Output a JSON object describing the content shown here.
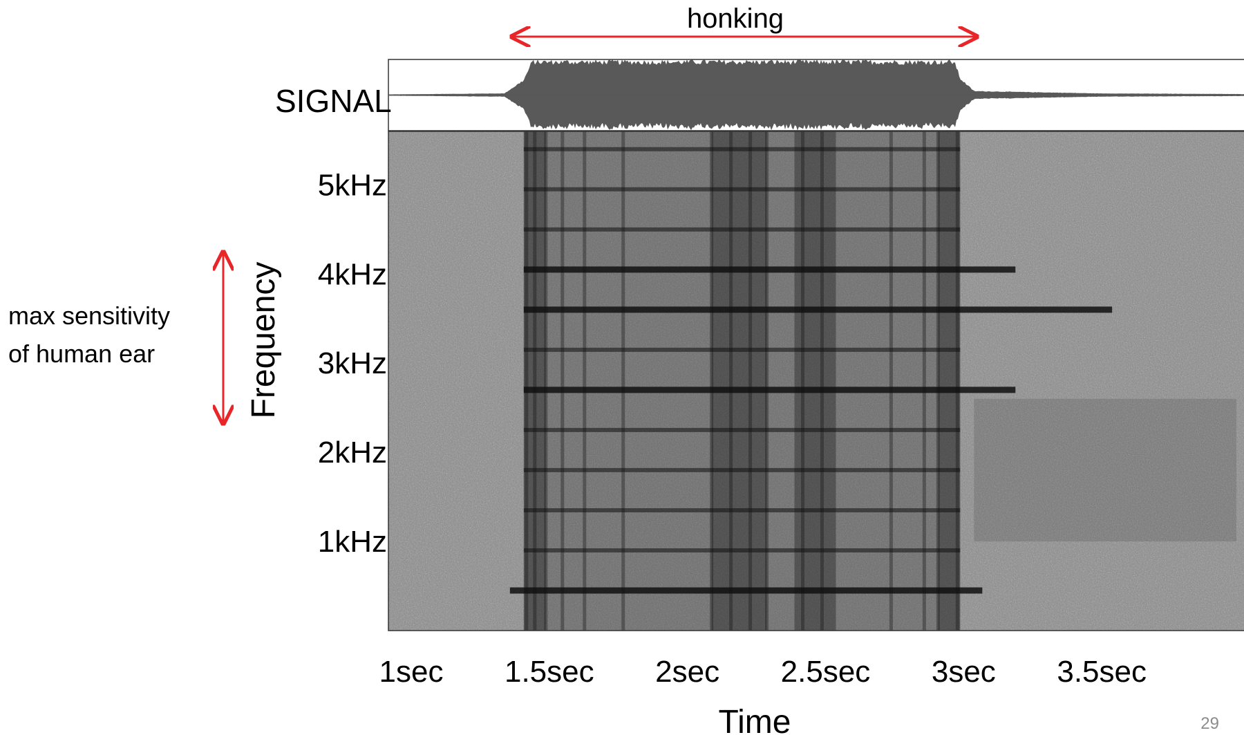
{
  "slide": {
    "page_number": "29"
  },
  "annotations": {
    "event_label": "honking",
    "sensitivity_label_line1": "max sensitivity",
    "sensitivity_label_line2": "of human ear",
    "arrow_color": "#e8262a"
  },
  "chart_data": [
    {
      "type": "line",
      "panel": "waveform",
      "ylabel": "SIGNAL",
      "time_range_sec": [
        0.93,
        4.03
      ],
      "honking_interval_sec": [
        1.42,
        3.0
      ],
      "waveform_color": "#595959",
      "envelope": {
        "x": [
          0.93,
          1.35,
          1.42,
          1.45,
          2.0,
          2.5,
          2.98,
          3.0,
          3.05,
          3.5,
          4.03
        ],
        "amplitude": [
          0.02,
          0.05,
          0.45,
          1.0,
          1.0,
          1.0,
          1.0,
          0.5,
          0.12,
          0.05,
          0.03
        ]
      }
    },
    {
      "type": "heatmap",
      "panel": "spectrogram",
      "xlabel": "Time",
      "ylabel": "Frequency",
      "x_tick_labels": [
        "1sec",
        "1.5sec",
        "2sec",
        "2.5sec",
        "3sec",
        "3.5sec"
      ],
      "x_tick_values_sec": [
        1.0,
        1.5,
        2.0,
        2.5,
        3.0,
        3.5
      ],
      "y_tick_labels": [
        "5kHz",
        "4kHz",
        "3kHz",
        "2kHz",
        "1kHz"
      ],
      "y_tick_values_khz": [
        5,
        4,
        3,
        2,
        1
      ],
      "time_range_sec": [
        0.93,
        4.03
      ],
      "freq_range_khz": [
        0,
        5.6
      ],
      "max_sensitivity_range_khz": [
        2.3,
        4.2
      ],
      "harmonics_khz": [
        0.45,
        0.9,
        1.35,
        1.8,
        2.25,
        2.7,
        3.15,
        3.6,
        4.05,
        4.5,
        4.95,
        5.4
      ],
      "strong_harmonics_khz": [
        0.45,
        2.7,
        3.6,
        4.05
      ],
      "harmonic_time_range_sec": [
        1.42,
        3.0
      ],
      "dark_band_sec": [
        [
          1.42,
          1.5
        ],
        [
          2.1,
          2.3
        ],
        [
          2.4,
          2.55
        ],
        [
          2.92,
          3.0
        ]
      ]
    }
  ]
}
